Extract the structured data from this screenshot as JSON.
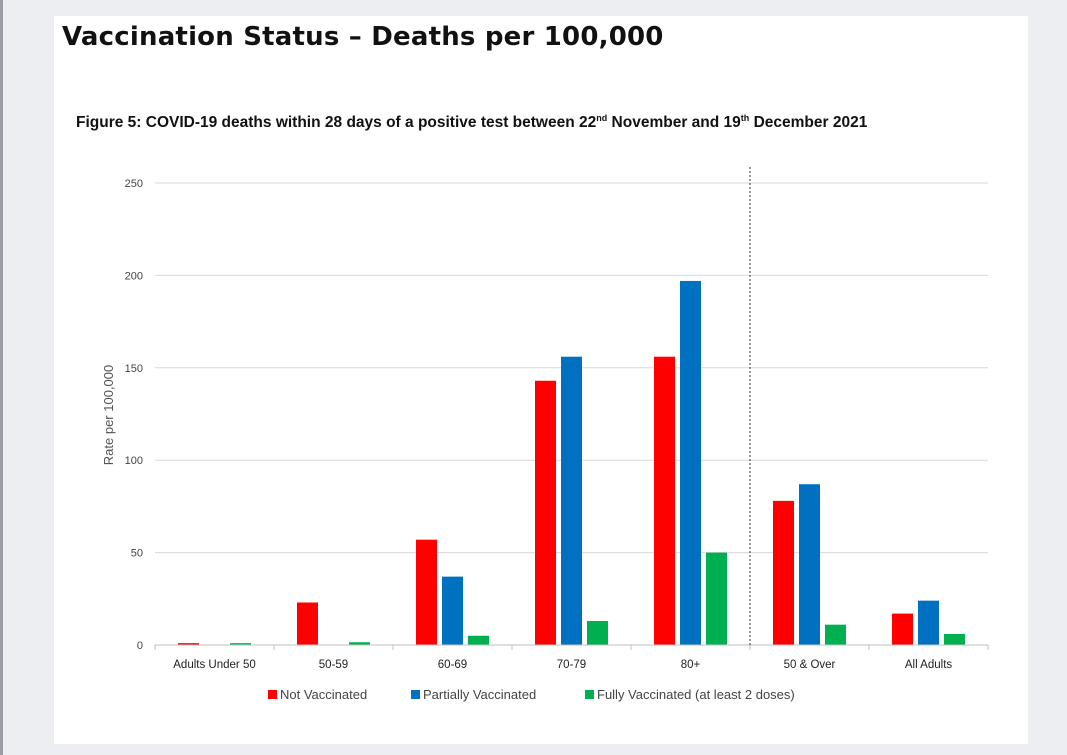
{
  "header": {
    "title": "Vaccination Status – Deaths per 100,000"
  },
  "figure": {
    "title_part1": "Figure 5: COVID-19 deaths within 28 days of a positive test between 22",
    "title_sup1": "nd",
    "title_part2": " November and 19",
    "title_sup2": "th",
    "title_part3": " December 2021"
  },
  "chart_data": {
    "type": "bar",
    "title": "",
    "xlabel": "",
    "ylabel": "Rate per 100,000",
    "ylim": [
      0,
      250
    ],
    "yticks": [
      0,
      50,
      100,
      150,
      200,
      250
    ],
    "grid": true,
    "legend_position": "bottom",
    "categories": [
      "Adults Under 50",
      "50-59",
      "60-69",
      "70-79",
      "80+",
      "50 & Over",
      "All Adults"
    ],
    "divider_after_category": "80+",
    "series": [
      {
        "name": "Not Vaccinated",
        "color": "#ff0000",
        "values": [
          1,
          23,
          57,
          143,
          156,
          78,
          17
        ]
      },
      {
        "name": "Partially Vaccinated",
        "color": "#0070c0",
        "values": [
          0,
          0,
          37,
          156,
          197,
          87,
          24
        ]
      },
      {
        "name": "Fully Vaccinated (at least 2 doses)",
        "color": "#00b050",
        "values": [
          1,
          1.5,
          5,
          13,
          50,
          11,
          6
        ]
      }
    ]
  }
}
